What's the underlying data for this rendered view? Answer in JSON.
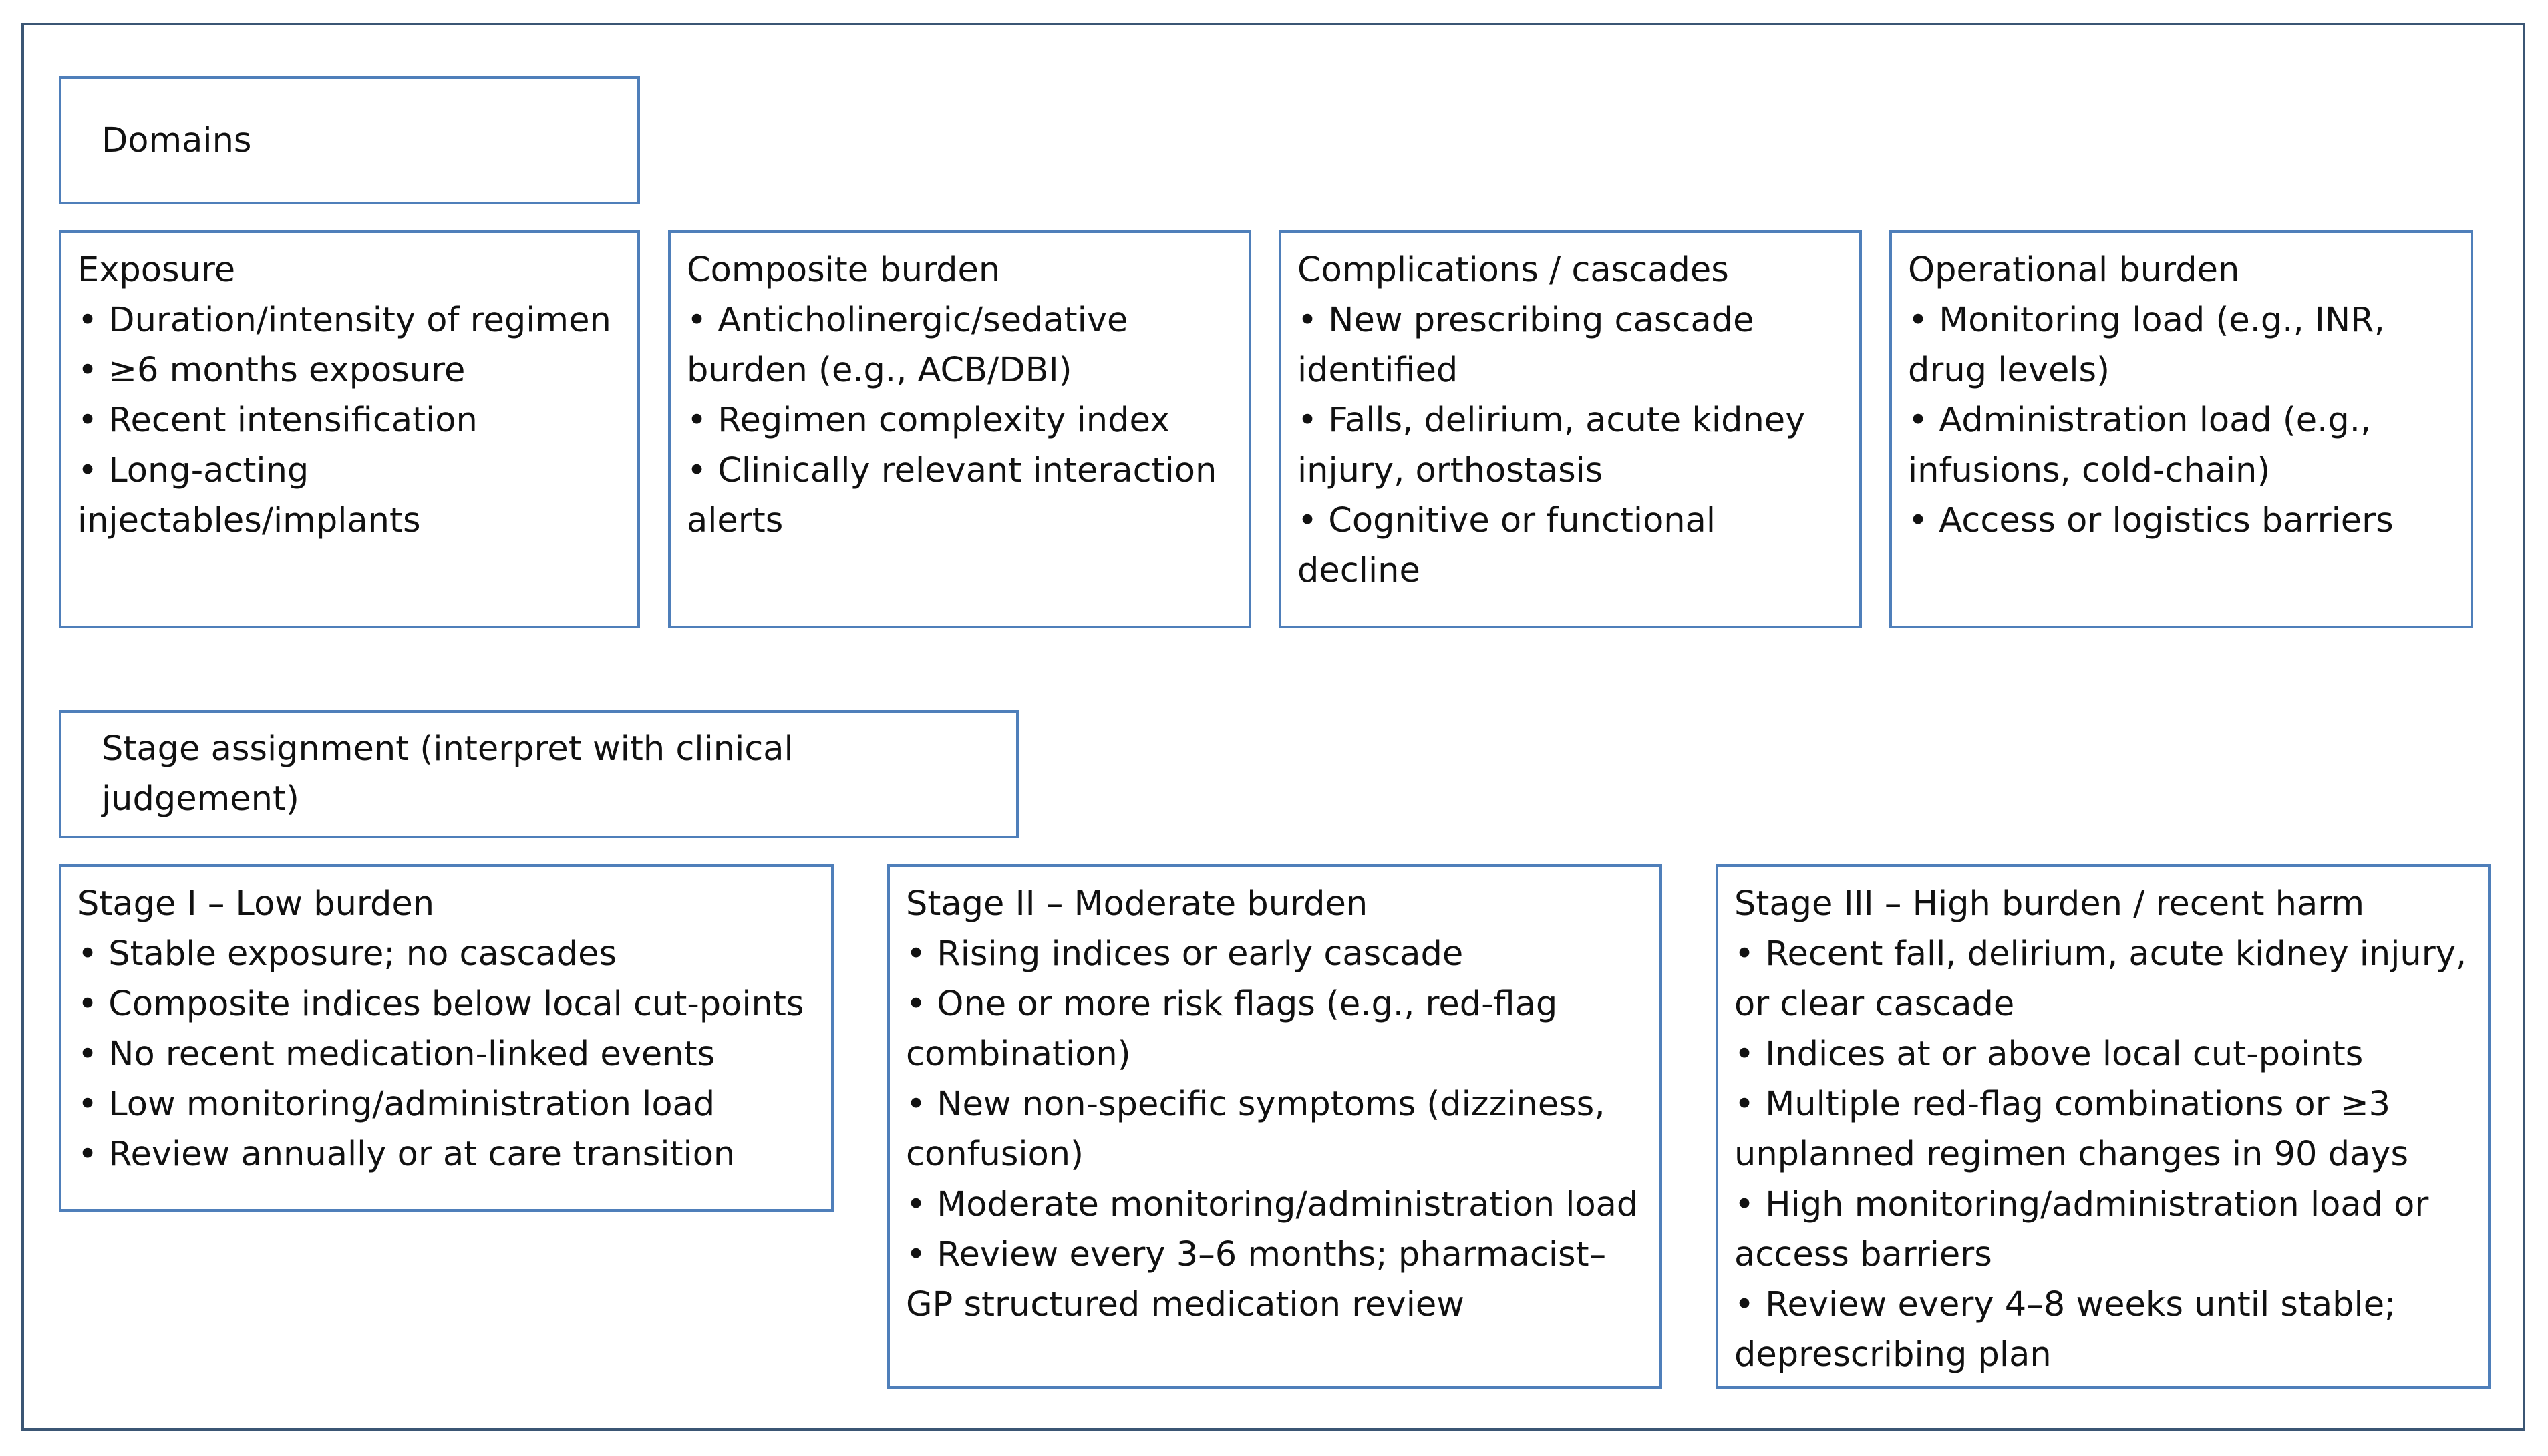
{
  "domains": {
    "title": "Domains",
    "items": [
      {
        "title": "Exposure",
        "bullets": [
          "• Duration/intensity of regimen",
          "• ≥6 months exposure",
          "• Recent intensification",
          "• Long-acting injectables/implants"
        ]
      },
      {
        "title": "Composite burden",
        "bullets": [
          "• Anticholinergic/sedative burden (e.g., ACB/DBI)",
          "• Regimen complexity index",
          "• Clinically relevant interaction alerts"
        ]
      },
      {
        "title": "Complications / cascades",
        "bullets": [
          "• New prescribing cascade identified",
          "• Falls, delirium, acute kidney injury, orthostasis",
          "• Cognitive or functional decline"
        ]
      },
      {
        "title": "Operational burden",
        "bullets": [
          "• Monitoring load (e.g., INR, drug levels)",
          "• Administration load (e.g., infusions, cold-chain)",
          "• Access or logistics barriers"
        ]
      }
    ]
  },
  "stages": {
    "title": "Stage assignment (interpret with clinical judgement)",
    "items": [
      {
        "title": "Stage I – Low burden",
        "bullets": [
          "• Stable exposure; no cascades",
          "• Composite indices below local cut-points",
          "• No recent medication-linked events",
          "• Low monitoring/administration load",
          "• Review annually or at care transition"
        ]
      },
      {
        "title": "Stage II – Moderate burden",
        "bullets": [
          "• Rising indices or early cascade",
          "• One or more risk flags (e.g., red-flag combination)",
          "• New non-specific symptoms (dizziness, confusion)",
          "• Moderate monitoring/administration load",
          "• Review every 3–6 months; pharmacist–GP structured medication review"
        ]
      },
      {
        "title": "Stage III – High burden / recent harm",
        "bullets": [
          "• Recent fall, delirium, acute kidney injury, or clear cascade",
          "• Indices at or above local cut-points",
          "• Multiple red-flag combinations or ≥3 unplanned regimen changes in 90 days",
          "• High monitoring/administration load or access barriers",
          "• Review every 4–8 weeks until stable; deprescribing plan"
        ]
      }
    ]
  }
}
